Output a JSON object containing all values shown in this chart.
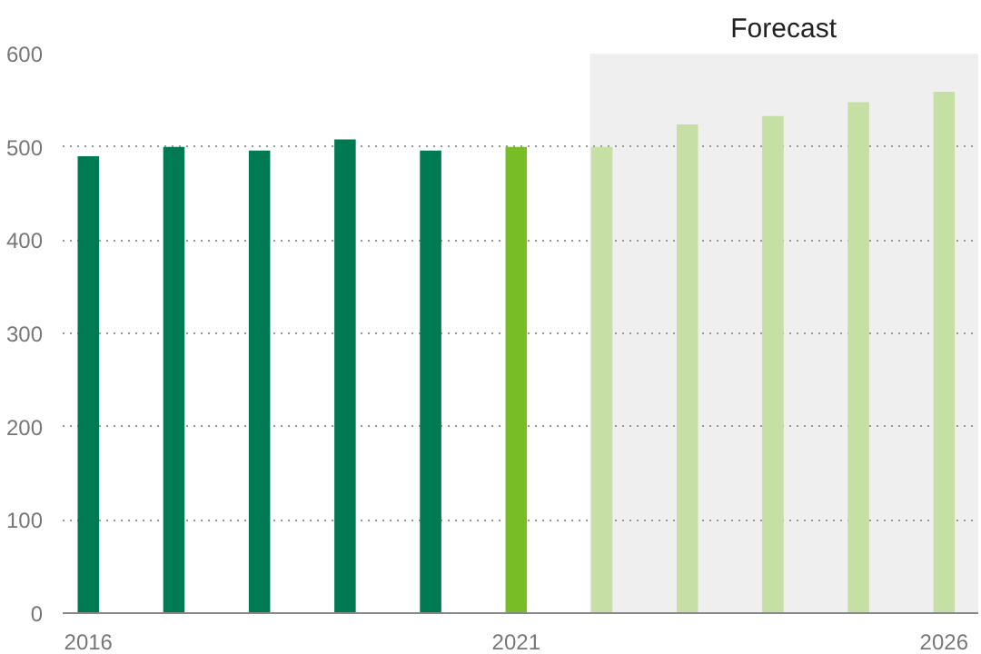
{
  "chart_data": {
    "type": "bar",
    "x": [
      2016,
      2017,
      2018,
      2019,
      2020,
      2021,
      2022,
      2023,
      2024,
      2025,
      2026
    ],
    "values": [
      490,
      500,
      496,
      508,
      496,
      500,
      500,
      524,
      533,
      548,
      559
    ],
    "colors": [
      "#007a52",
      "#007a52",
      "#007a52",
      "#007a52",
      "#007a52",
      "#78bd26",
      "#c6dfa4",
      "#c6dfa4",
      "#c6dfa4",
      "#c6dfa4",
      "#c6dfa4"
    ],
    "xlim": [
      2015.7,
      2026.4
    ],
    "xticks": [
      2016,
      2021,
      2026
    ],
    "ylim": [
      0,
      600
    ],
    "yticks": [
      0,
      100,
      200,
      300,
      400,
      500,
      600
    ],
    "grid": "y",
    "bands": [
      {
        "axis": "x",
        "from": 2021.86,
        "to": 2026.4,
        "label": "Forecast",
        "color": "#efefef"
      }
    ]
  }
}
